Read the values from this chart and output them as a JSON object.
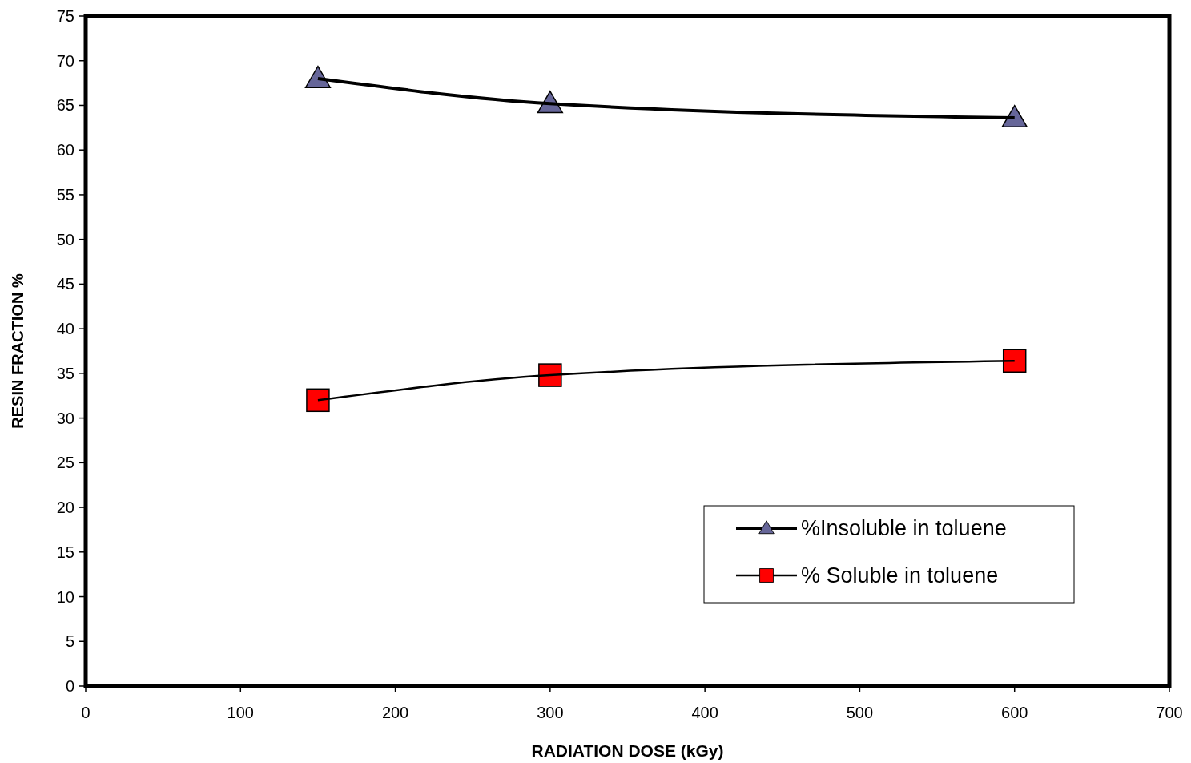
{
  "chart_data": {
    "type": "line",
    "xlabel": "RADIATION DOSE (kGy)",
    "ylabel": "RESIN FRACTION %",
    "x": [
      150,
      300,
      600
    ],
    "xlim": [
      0,
      700
    ],
    "xticks": [
      0,
      100,
      200,
      300,
      400,
      500,
      600,
      700
    ],
    "ylim": [
      0,
      75
    ],
    "yticks": [
      0,
      5,
      10,
      15,
      20,
      25,
      30,
      35,
      40,
      45,
      50,
      55,
      60,
      65,
      70,
      75
    ],
    "legend": "bottom right",
    "grid": false,
    "line_style": "solid",
    "series": [
      {
        "name": "%Insoluble in toluene",
        "color": "#666699",
        "values": [
          68,
          65.2,
          63.6
        ],
        "marker": "triangle"
      },
      {
        "name": "% Soluble in toluene",
        "color": "#ff0000",
        "values": [
          32,
          34.8,
          36.4
        ],
        "marker": "square"
      }
    ]
  }
}
